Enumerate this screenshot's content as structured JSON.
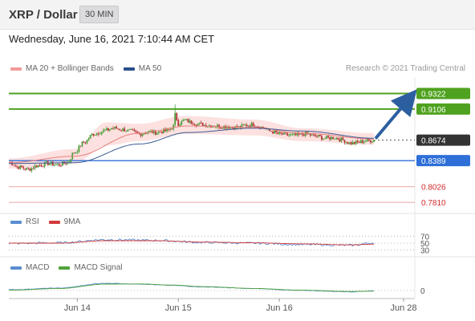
{
  "header": {
    "pair_title": "XRP / Dollar",
    "timeframe": "30 MIN",
    "datetime": "Wednesday, June 16, 2021 7:10:44 AM CET",
    "credit": "Research © 2021 Trading Central"
  },
  "legends": {
    "price": [
      {
        "label": "MA 20 + Bollinger Bands",
        "color": "#f19c9a"
      },
      {
        "label": "MA 50",
        "color": "#2b4f8c"
      }
    ],
    "rsi": [
      {
        "label": "RSI",
        "color": "#5a8ed0"
      },
      {
        "label": "9MA",
        "color": "#d33b3b"
      }
    ],
    "macd": [
      {
        "label": "MACD",
        "color": "#5a8ed0"
      },
      {
        "label": "MACD Signal",
        "color": "#4fa33a"
      }
    ]
  },
  "chart_data": [
    {
      "type": "candlestick",
      "panel": "price",
      "x_ticks": [
        "Jun 14",
        "Jun 15",
        "Jun 16",
        "Jun 28"
      ],
      "ylim": [
        0.77,
        0.955
      ],
      "levels": [
        {
          "label": "0.9322",
          "value": 0.9322,
          "kind": "target",
          "color": "#4fa21f"
        },
        {
          "label": "0.9106",
          "value": 0.9106,
          "kind": "resistance",
          "color": "#4fa21f"
        },
        {
          "label": "0.8674",
          "value": 0.8674,
          "kind": "last-price",
          "color": "#333333"
        },
        {
          "label": "0.8389",
          "value": 0.8389,
          "kind": "pivot",
          "color": "#2e6fd8"
        },
        {
          "label": "0.8026",
          "value": 0.8026,
          "kind": "support",
          "color": "#d42a2a"
        },
        {
          "label": "0.7810",
          "value": 0.781,
          "kind": "support",
          "color": "#d42a2a"
        }
      ],
      "close_anchors": [
        [
          0,
          0.837
        ],
        [
          6,
          0.83
        ],
        [
          12,
          0.827
        ],
        [
          18,
          0.832
        ],
        [
          24,
          0.835
        ],
        [
          30,
          0.833
        ],
        [
          36,
          0.836
        ],
        [
          40,
          0.85
        ],
        [
          46,
          0.864
        ],
        [
          52,
          0.876
        ],
        [
          58,
          0.88
        ],
        [
          64,
          0.884
        ],
        [
          70,
          0.882
        ],
        [
          74,
          0.88
        ],
        [
          80,
          0.876
        ],
        [
          86,
          0.879
        ],
        [
          90,
          0.878
        ],
        [
          96,
          0.88
        ],
        [
          104,
          0.89
        ],
        [
          108,
          0.895
        ],
        [
          112,
          0.892
        ],
        [
          116,
          0.89
        ],
        [
          122,
          0.888
        ],
        [
          128,
          0.887
        ],
        [
          134,
          0.886
        ],
        [
          140,
          0.885
        ],
        [
          146,
          0.888
        ],
        [
          150,
          0.889
        ],
        [
          156,
          0.885
        ],
        [
          160,
          0.88
        ],
        [
          166,
          0.876
        ],
        [
          172,
          0.874
        ],
        [
          176,
          0.874
        ],
        [
          182,
          0.876
        ],
        [
          188,
          0.873
        ],
        [
          194,
          0.87
        ],
        [
          200,
          0.871
        ],
        [
          204,
          0.868
        ],
        [
          210,
          0.863
        ],
        [
          214,
          0.864
        ],
        [
          218,
          0.866
        ],
        [
          224,
          0.867
        ]
      ],
      "ma20_anchors": [
        [
          0,
          0.836
        ],
        [
          40,
          0.845
        ],
        [
          80,
          0.877
        ],
        [
          110,
          0.887
        ],
        [
          150,
          0.885
        ],
        [
          180,
          0.877
        ],
        [
          224,
          0.869
        ]
      ],
      "ma50_anchors": [
        [
          0,
          0.835
        ],
        [
          40,
          0.836
        ],
        [
          80,
          0.862
        ],
        [
          110,
          0.878
        ],
        [
          150,
          0.884
        ],
        [
          180,
          0.88
        ],
        [
          224,
          0.87
        ]
      ],
      "bollinger_anchors": [
        {
          "i": 0,
          "upper": 0.842,
          "lower": 0.828
        },
        {
          "i": 40,
          "upper": 0.855,
          "lower": 0.835
        },
        {
          "i": 60,
          "upper": 0.892,
          "lower": 0.86
        },
        {
          "i": 80,
          "upper": 0.89,
          "lower": 0.866
        },
        {
          "i": 108,
          "upper": 0.901,
          "lower": 0.876
        },
        {
          "i": 150,
          "upper": 0.896,
          "lower": 0.874
        },
        {
          "i": 180,
          "upper": 0.884,
          "lower": 0.866
        },
        {
          "i": 224,
          "upper": 0.877,
          "lower": 0.861
        }
      ],
      "forecast": {
        "from_value": 0.8674,
        "to_value": 0.9322
      }
    },
    {
      "type": "line",
      "panel": "rsi",
      "yticks": [
        "70",
        "50",
        "30"
      ],
      "ylim": [
        20,
        80
      ],
      "series": [
        {
          "name": "RSI",
          "anchors": [
            [
              0,
              49
            ],
            [
              30,
              51
            ],
            [
              60,
              60
            ],
            [
              90,
              58
            ],
            [
              120,
              52
            ],
            [
              150,
              50
            ],
            [
              180,
              46
            ],
            [
              210,
              44
            ],
            [
              224,
              51
            ]
          ]
        },
        {
          "name": "9MA",
          "anchors": [
            [
              0,
              50
            ],
            [
              30,
              50
            ],
            [
              60,
              57
            ],
            [
              90,
              57
            ],
            [
              120,
              53
            ],
            [
              150,
              51
            ],
            [
              180,
              48
            ],
            [
              210,
              45
            ],
            [
              224,
              47
            ]
          ]
        }
      ]
    },
    {
      "type": "line",
      "panel": "macd",
      "yticks": [
        "0"
      ],
      "ylim": [
        -1,
        1
      ],
      "series": [
        {
          "name": "MACD",
          "anchors": [
            [
              0,
              0.05
            ],
            [
              30,
              0.15
            ],
            [
              60,
              0.45
            ],
            [
              80,
              0.4
            ],
            [
              100,
              0.32
            ],
            [
              120,
              0.22
            ],
            [
              150,
              0.12
            ],
            [
              180,
              0.0
            ],
            [
              210,
              -0.08
            ],
            [
              224,
              -0.02
            ]
          ]
        },
        {
          "name": "MACD Signal",
          "anchors": [
            [
              0,
              0.02
            ],
            [
              30,
              0.12
            ],
            [
              60,
              0.4
            ],
            [
              80,
              0.41
            ],
            [
              100,
              0.34
            ],
            [
              120,
              0.24
            ],
            [
              150,
              0.13
            ],
            [
              180,
              0.02
            ],
            [
              210,
              -0.06
            ],
            [
              224,
              -0.04
            ]
          ]
        }
      ]
    }
  ]
}
